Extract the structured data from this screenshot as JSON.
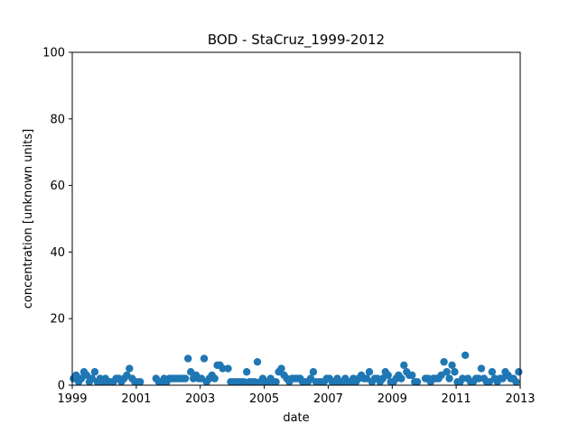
{
  "chart_data": {
    "type": "scatter",
    "title": "BOD - StaCruz_1999-2012",
    "xlabel": "date",
    "ylabel": "concentration [unknown units]",
    "xlim": [
      "1999-01-01",
      "2013-01-01"
    ],
    "ylim": [
      0,
      100
    ],
    "x_ticks": [
      "1999",
      "2001",
      "2003",
      "2005",
      "2007",
      "2009",
      "2011",
      "2013"
    ],
    "y_ticks": [
      "0",
      "20",
      "40",
      "60",
      "80",
      "100"
    ],
    "grid": false,
    "legend": "none",
    "marker_color": "#1f77b4",
    "series": [
      {
        "points": [
          [
            "1999-01-15",
            2
          ],
          [
            "1999-02-15",
            3
          ],
          [
            "1999-03-15",
            1
          ],
          [
            "1999-04-15",
            2
          ],
          [
            "1999-05-15",
            4
          ],
          [
            "1999-06-15",
            3
          ],
          [
            "1999-07-15",
            1
          ],
          [
            "1999-08-15",
            2
          ],
          [
            "1999-09-15",
            4
          ],
          [
            "1999-10-15",
            1
          ],
          [
            "1999-11-15",
            2
          ],
          [
            "1999-12-15",
            1
          ],
          [
            "2000-01-15",
            2
          ],
          [
            "2000-02-15",
            1
          ],
          [
            "2000-03-15",
            1
          ],
          [
            "2000-04-15",
            1
          ],
          [
            "2000-05-15",
            2
          ],
          [
            "2000-06-15",
            2
          ],
          [
            "2000-07-15",
            1
          ],
          [
            "2000-08-15",
            2
          ],
          [
            "2000-09-15",
            3
          ],
          [
            "2000-10-15",
            5
          ],
          [
            "2000-11-15",
            2
          ],
          [
            "2000-12-15",
            1
          ],
          [
            "2001-01-15",
            1
          ],
          [
            "2001-02-15",
            1
          ],
          [
            "2001-08-15",
            2
          ],
          [
            "2001-09-15",
            1
          ],
          [
            "2001-10-15",
            1
          ],
          [
            "2001-11-15",
            2
          ],
          [
            "2001-12-15",
            1
          ],
          [
            "2002-01-15",
            2
          ],
          [
            "2002-02-15",
            2
          ],
          [
            "2002-03-15",
            2
          ],
          [
            "2002-04-15",
            2
          ],
          [
            "2002-05-15",
            2
          ],
          [
            "2002-06-15",
            2
          ],
          [
            "2002-07-15",
            2
          ],
          [
            "2002-08-15",
            8
          ],
          [
            "2002-09-15",
            4
          ],
          [
            "2002-10-15",
            2
          ],
          [
            "2002-11-15",
            3
          ],
          [
            "2002-12-15",
            2
          ],
          [
            "2003-01-15",
            2
          ],
          [
            "2003-02-15",
            8
          ],
          [
            "2003-03-15",
            1
          ],
          [
            "2003-04-15",
            2
          ],
          [
            "2003-05-15",
            3
          ],
          [
            "2003-06-15",
            2
          ],
          [
            "2003-07-15",
            6
          ],
          [
            "2003-08-15",
            6
          ],
          [
            "2003-09-15",
            5
          ],
          [
            "2003-11-15",
            5
          ],
          [
            "2003-12-15",
            1
          ],
          [
            "2004-01-15",
            1
          ],
          [
            "2004-02-15",
            1
          ],
          [
            "2004-03-15",
            1
          ],
          [
            "2004-04-15",
            1
          ],
          [
            "2004-05-15",
            1
          ],
          [
            "2004-06-15",
            4
          ],
          [
            "2004-07-15",
            1
          ],
          [
            "2004-08-15",
            1
          ],
          [
            "2004-09-15",
            1
          ],
          [
            "2004-10-15",
            7
          ],
          [
            "2004-11-15",
            1
          ],
          [
            "2004-12-15",
            2
          ],
          [
            "2005-01-15",
            1
          ],
          [
            "2005-02-15",
            1
          ],
          [
            "2005-03-15",
            2
          ],
          [
            "2005-04-15",
            1
          ],
          [
            "2005-05-15",
            1
          ],
          [
            "2005-06-15",
            4
          ],
          [
            "2005-07-15",
            5
          ],
          [
            "2005-08-15",
            3
          ],
          [
            "2005-09-15",
            2
          ],
          [
            "2005-10-15",
            1
          ],
          [
            "2005-11-15",
            2
          ],
          [
            "2005-12-15",
            2
          ],
          [
            "2006-01-15",
            2
          ],
          [
            "2006-02-15",
            2
          ],
          [
            "2006-03-15",
            1
          ],
          [
            "2006-04-15",
            1
          ],
          [
            "2006-05-15",
            1
          ],
          [
            "2006-06-15",
            2
          ],
          [
            "2006-07-15",
            4
          ],
          [
            "2006-08-15",
            1
          ],
          [
            "2006-09-15",
            1
          ],
          [
            "2006-10-15",
            1
          ],
          [
            "2006-11-15",
            1
          ],
          [
            "2006-12-15",
            2
          ],
          [
            "2007-01-15",
            2
          ],
          [
            "2007-02-15",
            1
          ],
          [
            "2007-03-15",
            1
          ],
          [
            "2007-04-15",
            2
          ],
          [
            "2007-05-15",
            1
          ],
          [
            "2007-06-15",
            1
          ],
          [
            "2007-07-15",
            2
          ],
          [
            "2007-08-15",
            1
          ],
          [
            "2007-09-15",
            1
          ],
          [
            "2007-10-15",
            2
          ],
          [
            "2007-11-15",
            1
          ],
          [
            "2007-12-15",
            2
          ],
          [
            "2008-01-15",
            3
          ],
          [
            "2008-02-15",
            2
          ],
          [
            "2008-03-15",
            2
          ],
          [
            "2008-04-15",
            4
          ],
          [
            "2008-05-15",
            1
          ],
          [
            "2008-06-15",
            2
          ],
          [
            "2008-07-15",
            2
          ],
          [
            "2008-08-15",
            1
          ],
          [
            "2008-09-15",
            2
          ],
          [
            "2008-10-15",
            4
          ],
          [
            "2008-11-15",
            3
          ],
          [
            "2008-12-15",
            1
          ],
          [
            "2009-01-15",
            1
          ],
          [
            "2009-02-15",
            2
          ],
          [
            "2009-03-15",
            3
          ],
          [
            "2009-04-15",
            2
          ],
          [
            "2009-05-15",
            6
          ],
          [
            "2009-06-15",
            4
          ],
          [
            "2009-07-15",
            3
          ],
          [
            "2009-08-15",
            3
          ],
          [
            "2009-09-15",
            1
          ],
          [
            "2009-10-15",
            1
          ],
          [
            "2010-01-15",
            2
          ],
          [
            "2010-02-15",
            2
          ],
          [
            "2010-03-15",
            1
          ],
          [
            "2010-04-15",
            2
          ],
          [
            "2010-05-15",
            2
          ],
          [
            "2010-06-15",
            2
          ],
          [
            "2010-07-15",
            3
          ],
          [
            "2010-08-15",
            7
          ],
          [
            "2010-09-15",
            4
          ],
          [
            "2010-10-15",
            2
          ],
          [
            "2010-11-15",
            6
          ],
          [
            "2010-12-15",
            4
          ],
          [
            "2011-01-15",
            1
          ],
          [
            "2011-02-15",
            1
          ],
          [
            "2011-03-15",
            2
          ],
          [
            "2011-04-15",
            9
          ],
          [
            "2011-05-15",
            2
          ],
          [
            "2011-06-15",
            1
          ],
          [
            "2011-07-15",
            1
          ],
          [
            "2011-08-15",
            2
          ],
          [
            "2011-09-15",
            2
          ],
          [
            "2011-10-15",
            5
          ],
          [
            "2011-11-15",
            2
          ],
          [
            "2011-12-15",
            1
          ],
          [
            "2012-01-15",
            1
          ],
          [
            "2012-02-15",
            4
          ],
          [
            "2012-03-15",
            2
          ],
          [
            "2012-04-15",
            1
          ],
          [
            "2012-05-15",
            2
          ],
          [
            "2012-06-15",
            2
          ],
          [
            "2012-07-15",
            4
          ],
          [
            "2012-08-15",
            3
          ],
          [
            "2012-09-15",
            2
          ],
          [
            "2012-10-15",
            2
          ],
          [
            "2012-11-15",
            1
          ],
          [
            "2012-12-15",
            4
          ]
        ]
      }
    ]
  }
}
